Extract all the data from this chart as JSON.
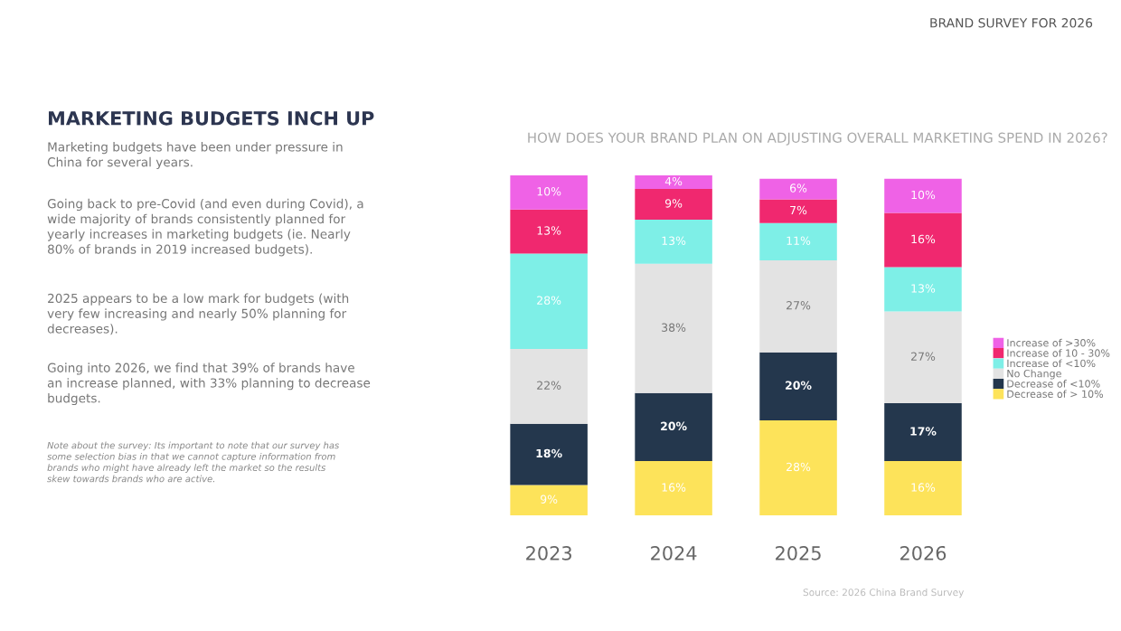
{
  "chart_data": {
    "type": "bar",
    "stacked": true,
    "title": "HOW DOES YOUR BRAND PLAN ON ADJUSTING OVERALL MARKETING SPEND IN 2026?",
    "categories": [
      "2023",
      "2024",
      "2025",
      "2026"
    ],
    "series": [
      {
        "name": "Decrease of > 10%",
        "color": "#fde35a",
        "values": [
          9,
          16,
          28,
          16
        ],
        "value_labels": [
          "9%",
          "16%",
          "28%",
          "16%"
        ]
      },
      {
        "name": "Decrease of <10%",
        "color": "#24374d",
        "values": [
          18,
          20,
          20,
          17
        ],
        "value_labels": [
          "18%",
          "20%",
          "20%",
          "17%"
        ]
      },
      {
        "name": "No Change",
        "color": "#e3e3e3",
        "values": [
          22,
          38,
          27,
          27
        ],
        "value_labels": [
          "22%",
          "38%",
          "27%",
          "27%"
        ]
      },
      {
        "name": "Increase of <10%",
        "color": "#7eefe7",
        "values": [
          28,
          13,
          11,
          13
        ],
        "value_labels": [
          "28%",
          "13%",
          "11%",
          "13%"
        ]
      },
      {
        "name": "Increase of 10 - 30%",
        "color": "#f0286f",
        "values": [
          13,
          9,
          7,
          16
        ],
        "value_labels": [
          "13%",
          "9%",
          "7%",
          "16%"
        ]
      },
      {
        "name": "Increase of >30%",
        "color": "#ef62e6",
        "values": [
          10,
          4,
          6,
          10
        ],
        "value_labels": [
          "10%",
          "4%",
          "6%",
          "10%"
        ]
      }
    ],
    "legend": "right",
    "annotations": [
      "BRAND SURVEY FOR 2026",
      "MARKETING BUDGETS INCH UP",
      "Marketing budgets have been under pressure in\nChina for several years.",
      "Going back to pre-Covid (and even during Covid), a\nwide majority of brands consistently planned for\nyearly increases in marketing budgets (ie. Nearly\n80% of brands in 2019 increased budgets).",
      "2025 appears to be a low mark for budgets (with\nvery few increasing and nearly 50% planning for\ndecreases).",
      "Going into 2026, we find that 39% of brands have\nan increase planned, with 33% planning to decrease\nbudgets.",
      "Note about the survey: Its important to note that our survey has\nsome selection bias in that we cannot capture information from\nbrands who might have already left the market so the results\nskew towards brands who are active.",
      "Source: 2026 China Brand Survey"
    ]
  }
}
